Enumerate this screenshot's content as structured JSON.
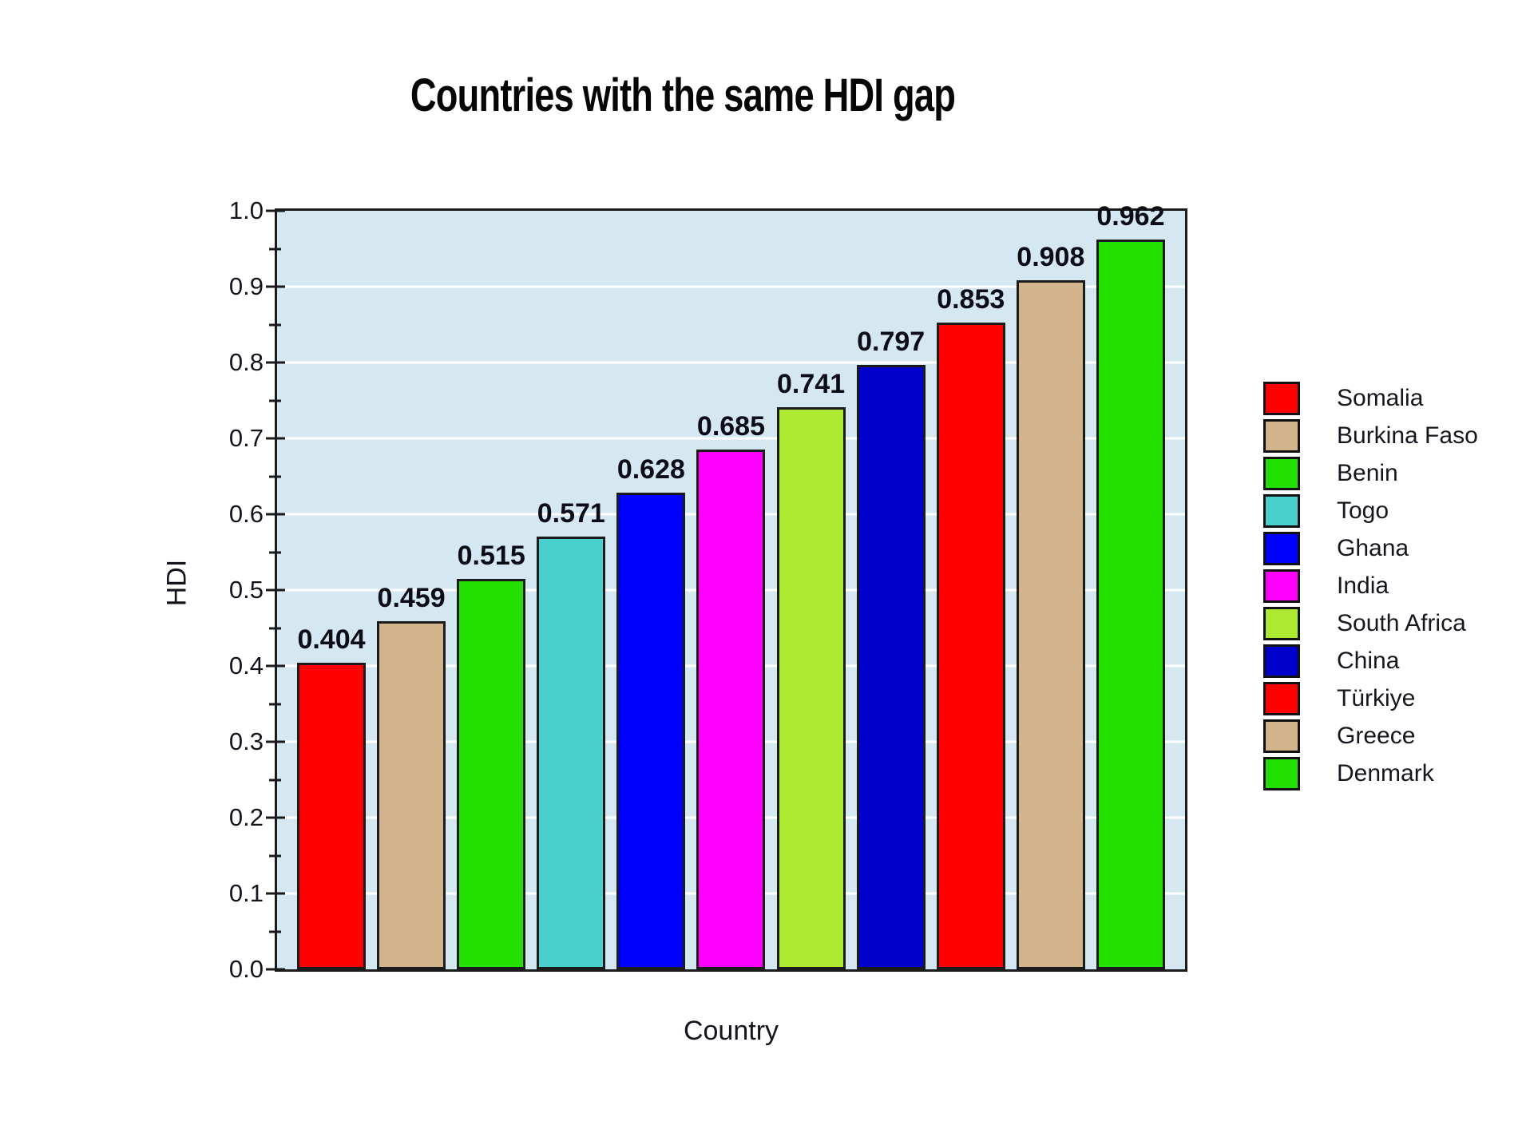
{
  "title": "Countries with the same HDI gap",
  "axis": {
    "x_label": "Country",
    "y_label": "HDI"
  },
  "chart_data": {
    "type": "bar",
    "title": "Countries with the same HDI gap",
    "xlabel": "Country",
    "ylabel": "HDI",
    "ylim": [
      0.0,
      1.0
    ],
    "y_tick_step": 0.1,
    "y_minor_tick_step": 0.05,
    "y_tick_labels": [
      "0.0",
      "0.1",
      "0.2",
      "0.3",
      "0.4",
      "0.5",
      "0.6",
      "0.7",
      "0.8",
      "0.9",
      "1.0"
    ],
    "grid": {
      "major_horizontal": true,
      "minor": false,
      "color": "#ffffff"
    },
    "legend_position": "right",
    "categories": [
      "Somalia",
      "Burkina Faso",
      "Benin",
      "Togo",
      "Ghana",
      "India",
      "South Africa",
      "China",
      "Türkiye",
      "Greece",
      "Denmark"
    ],
    "values": [
      0.404,
      0.459,
      0.515,
      0.571,
      0.628,
      0.685,
      0.741,
      0.797,
      0.853,
      0.908,
      0.962
    ],
    "value_labels": [
      "0.404",
      "0.459",
      "0.515",
      "0.571",
      "0.628",
      "0.685",
      "0.741",
      "0.797",
      "0.853",
      "0.908",
      "0.962"
    ],
    "bar_colors": [
      "#ff0000",
      "#d2b48c",
      "#22e000",
      "#48d1cc",
      "#0000ff",
      "#ff00ff",
      "#ade930",
      "#0000cd",
      "#ff0000",
      "#d2b48c",
      "#22e000"
    ],
    "colors": {
      "panel_background": "#d5e7f0",
      "panel_border": "#1b1b1b",
      "gridline": "#ffffff",
      "text": "#14141f",
      "page_background": "#ffffff"
    }
  }
}
